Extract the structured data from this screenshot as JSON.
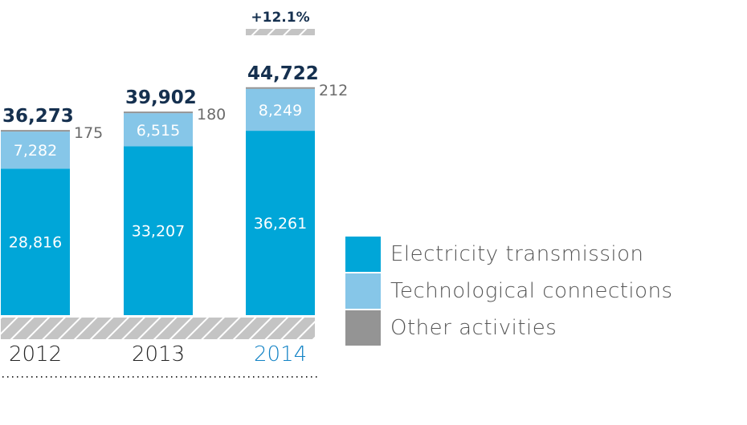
{
  "chart_data": {
    "type": "bar",
    "stacked": true,
    "categories": [
      "2012",
      "2013",
      "2014"
    ],
    "highlight_category": "2014",
    "series": [
      {
        "name": "Electricity transmission",
        "values": [
          28816,
          33207,
          36261
        ],
        "labels": [
          "28,816",
          "33,207",
          "36,261"
        ],
        "color": "#00a6d8"
      },
      {
        "name": "Technological connections",
        "values": [
          7282,
          6515,
          8249
        ],
        "labels": [
          "7,282",
          "6,515",
          "8,249"
        ],
        "color": "#86c6e8"
      },
      {
        "name": "Other activities",
        "values": [
          175,
          180,
          212
        ],
        "labels": [
          "175",
          "180",
          "212"
        ],
        "color": "#949494"
      }
    ],
    "totals": [
      "36,273",
      "39,902",
      "44,722"
    ],
    "total_values": [
      36273,
      39902,
      44722
    ],
    "growth_annotation": "+12.1%",
    "colors": {
      "total_text": "#15304f",
      "year_text": "#222222",
      "highlight_year": "#1182c5",
      "other_label": "#6b6b6b",
      "hatch": "#c4c4c4"
    }
  }
}
